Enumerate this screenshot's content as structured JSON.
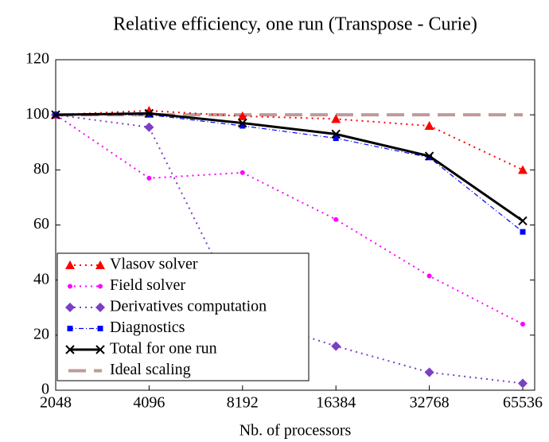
{
  "chart_data": {
    "type": "line",
    "title": "Relative efficiency, one run (Transpose - Curie)",
    "x_label": "Nb. of processors",
    "categories": [
      "2048",
      "4096",
      "8192",
      "16384",
      "32768",
      "65536"
    ],
    "ylim": [
      0,
      120
    ],
    "yticks": [
      0,
      20,
      40,
      60,
      80,
      100,
      120
    ],
    "legend": "lower left",
    "series": [
      {
        "name": "Vlasov solver",
        "color": "#ff0000",
        "marker": "triangle",
        "dash": "dotted",
        "values": [
          100,
          101.5,
          99.5,
          98.5,
          96,
          80
        ]
      },
      {
        "name": "Field solver",
        "color": "#ff00ff",
        "marker": "circle",
        "dash": "dotted",
        "values": [
          100,
          77,
          79,
          62,
          41.5,
          24
        ]
      },
      {
        "name": "Derivatives computation",
        "color": "#7b3fc4",
        "marker": "diamond",
        "dash": "dotted",
        "values": [
          100,
          95.5,
          27,
          16,
          6.5,
          2.5
        ]
      },
      {
        "name": "Diagnostics",
        "color": "#0000ff",
        "marker": "square",
        "dash": "dashdot",
        "values": [
          100,
          100,
          96,
          91.5,
          84.5,
          57.5
        ]
      },
      {
        "name": "Total for one run",
        "color": "#000000",
        "marker": "cross",
        "dash": "solid",
        "values": [
          100,
          100.5,
          97,
          93,
          85,
          61.5
        ]
      },
      {
        "name": "Ideal scaling",
        "color": "#c09a9a",
        "marker": "none",
        "dash": "dashed",
        "values": [
          100,
          100,
          100,
          100,
          100,
          100
        ]
      }
    ]
  }
}
